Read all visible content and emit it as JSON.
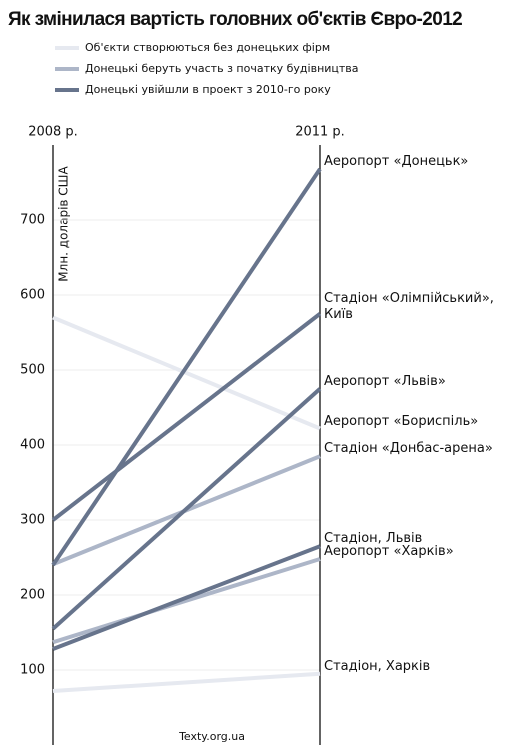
{
  "chart_data": {
    "type": "slope",
    "title": "Як змінилася вартість головних об'єктів Євро-2012",
    "ylabel": "Млн. доларів США",
    "source": "Texty.org.ua",
    "x": [
      "2008 р.",
      "2011 р."
    ],
    "ylim": [
      0,
      800
    ],
    "yticks": [
      100,
      200,
      300,
      400,
      500,
      600,
      700
    ],
    "grid": true,
    "legend": [
      {
        "name": "Об'єкти створюються без донецьких фірм",
        "color": "#e6e9f0"
      },
      {
        "name": "Донецькі беруть участь з початку будівництва",
        "color": "#adb6c8"
      },
      {
        "name": "Донецькі увійшли в проект з 2010-го року",
        "color": "#67748c"
      }
    ],
    "series": [
      {
        "name": "Аеропорт «Донецьк»",
        "color": "#67748c",
        "values": [
          240,
          768
        ]
      },
      {
        "name": "Стадіон «Олімпійський», Київ",
        "color": "#67748c",
        "values": [
          300,
          575
        ]
      },
      {
        "name": "Аеропорт «Львів»",
        "color": "#67748c",
        "values": [
          155,
          475
        ]
      },
      {
        "name": "Аеропорт «Бориспіль»",
        "color": "#e6e9f0",
        "values": [
          570,
          422
        ]
      },
      {
        "name": "Стадіон «Донбас-арена»",
        "color": "#adb6c8",
        "values": [
          241,
          385
        ]
      },
      {
        "name": "Стадіон, Львів",
        "color": "#67748c",
        "values": [
          128,
          265
        ]
      },
      {
        "name": "Аеропорт «Харків»",
        "color": "#adb6c8",
        "values": [
          137,
          248
        ]
      },
      {
        "name": "Стадіон, Харків",
        "color": "#e6e9f0",
        "values": [
          72,
          95
        ]
      }
    ]
  }
}
